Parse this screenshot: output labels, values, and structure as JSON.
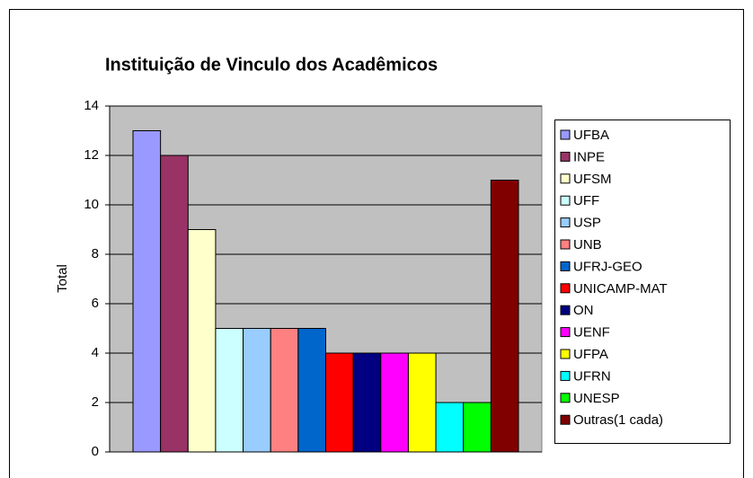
{
  "chart_data": {
    "type": "bar",
    "title": "Instituição de Vinculo dos Acadêmicos",
    "y_label": "Total",
    "categories": [
      "UFBA",
      "INPE",
      "UFSM",
      "UFF",
      "USP",
      "UNB",
      "UFRJ-GEO",
      "UNICAMP-MAT",
      "ON",
      "UENF",
      "UFPA",
      "UFRN",
      "UNESP",
      "Outras(1 cada)"
    ],
    "values": [
      13,
      12,
      9,
      5,
      5,
      5,
      5,
      4,
      4,
      4,
      4,
      2,
      2,
      11
    ],
    "colors": [
      "#9999ff",
      "#993366",
      "#ffffcc",
      "#ccffff",
      "#99ccff",
      "#ff8080",
      "#0066cc",
      "#ff0000",
      "#000080",
      "#ff00ff",
      "#ffff00",
      "#00ffff",
      "#00ff00",
      "#800000"
    ],
    "ylim": [
      0,
      14
    ],
    "yticks": [
      0,
      2,
      4,
      6,
      8,
      10,
      12,
      14
    ],
    "grid": true,
    "legend": "right"
  }
}
